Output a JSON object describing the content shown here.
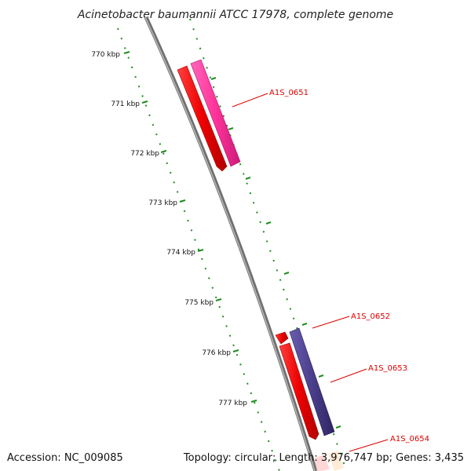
{
  "title": "Acinetobacter baumannii ATCC 17978, complete genome",
  "footer": {
    "accession": "Accession: NC_009085",
    "summary": "Topology: circular; Length: 3,976,747 bp; Genes: 3,435"
  },
  "scale_ticks": [
    "770 kbp",
    "771 kbp",
    "772 kbp",
    "773 kbp",
    "774 kbp",
    "775 kbp",
    "776 kbp",
    "777 kbp"
  ],
  "genes": [
    {
      "name": "A1S_0651"
    },
    {
      "name": "A1S_0652"
    },
    {
      "name": "A1S_0653"
    },
    {
      "name": "A1S_0654"
    }
  ],
  "colors": {
    "backbone": "#8a8a8a",
    "tick_green": "#228b22",
    "gene_red": "#ee0000",
    "gene_pink": "#ff3399",
    "gene_purple": "#4b3f8c",
    "label_red": "#dd0000"
  }
}
